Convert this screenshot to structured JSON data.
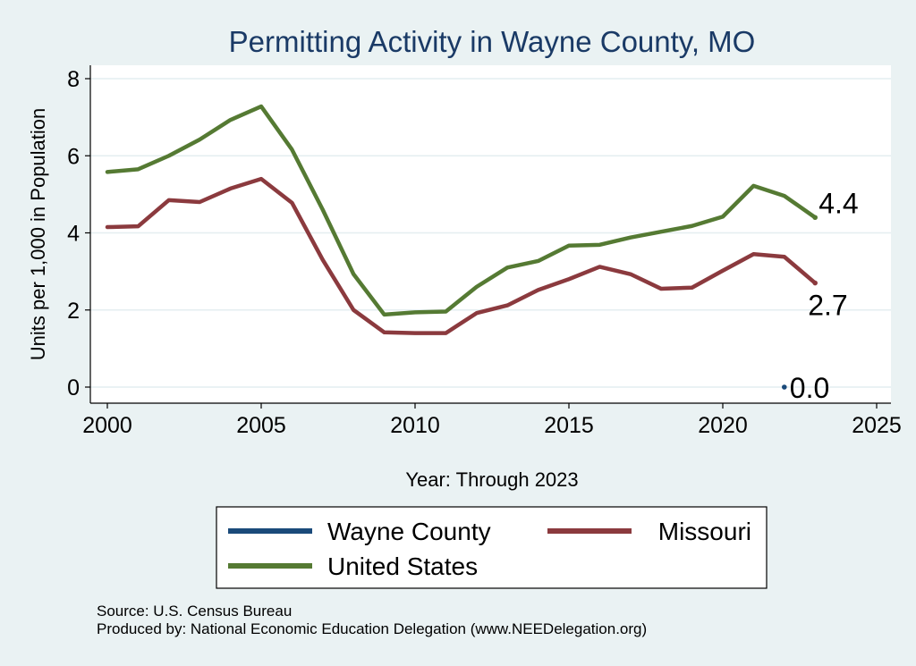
{
  "chart_data": {
    "type": "line",
    "title": "Permitting Activity in Wayne County, MO",
    "xlabel": "Year: Through 2023",
    "ylabel": "Units per 1,000 in Population",
    "xlim": [
      2000,
      2025
    ],
    "ylim": [
      0,
      8
    ],
    "xticks": [
      2000,
      2005,
      2010,
      2015,
      2020,
      2025
    ],
    "yticks": [
      0,
      2,
      4,
      6,
      8
    ],
    "grid": true,
    "legend_position": "bottom",
    "series": [
      {
        "name": "Wayne County",
        "color": "#1a4a7a",
        "x": [
          2022
        ],
        "values": [
          0.0
        ],
        "end_label": "0.0"
      },
      {
        "name": "Missouri",
        "color": "#8b3a3e",
        "x": [
          2000,
          2001,
          2002,
          2003,
          2004,
          2005,
          2006,
          2007,
          2008,
          2009,
          2010,
          2011,
          2012,
          2013,
          2014,
          2015,
          2016,
          2017,
          2018,
          2019,
          2020,
          2021,
          2022,
          2023
        ],
        "values": [
          4.15,
          4.17,
          4.85,
          4.8,
          5.15,
          5.4,
          4.78,
          3.3,
          2.0,
          1.42,
          1.4,
          1.4,
          1.92,
          2.12,
          2.52,
          2.8,
          3.12,
          2.93,
          2.55,
          2.58,
          3.02,
          3.45,
          3.38,
          2.7
        ],
        "end_label": "2.7"
      },
      {
        "name": "United States",
        "color": "#557a33",
        "x": [
          2000,
          2001,
          2002,
          2003,
          2004,
          2005,
          2006,
          2007,
          2008,
          2009,
          2010,
          2011,
          2012,
          2013,
          2014,
          2015,
          2016,
          2017,
          2018,
          2019,
          2020,
          2021,
          2022,
          2023
        ],
        "values": [
          5.58,
          5.65,
          6.0,
          6.42,
          6.93,
          7.28,
          6.16,
          4.6,
          2.93,
          1.88,
          1.94,
          1.96,
          2.6,
          3.1,
          3.27,
          3.67,
          3.69,
          3.88,
          4.03,
          4.18,
          4.42,
          5.22,
          4.96,
          4.4
        ],
        "end_label": "4.4"
      }
    ],
    "legend_order": [
      "Wayne County",
      "Missouri",
      "United States"
    ],
    "notes": [
      "Source: U.S. Census Bureau",
      "Produced by: National Economic Education Delegation (www.NEEDelegation.org)"
    ]
  }
}
